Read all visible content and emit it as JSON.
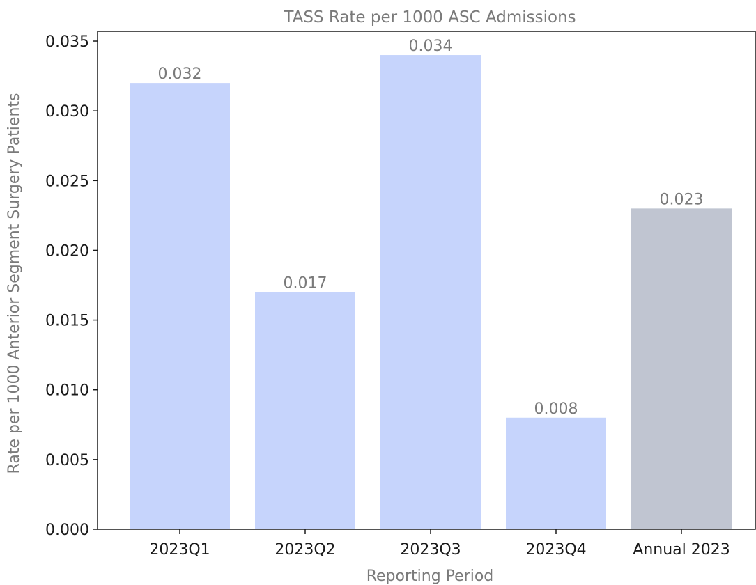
{
  "chart_data": {
    "type": "bar",
    "title": "TASS Rate per 1000 ASC Admissions",
    "xlabel": "Reporting Period",
    "ylabel": "Rate per 1000 Anterior Segment Surgery Patients",
    "categories": [
      "2023Q1",
      "2023Q2",
      "2023Q3",
      "2023Q4",
      "Annual 2023"
    ],
    "values": [
      0.032,
      0.017,
      0.034,
      0.008,
      0.023
    ],
    "data_labels": [
      "0.032",
      "0.017",
      "0.034",
      "0.008",
      "0.023"
    ],
    "bar_colors": [
      "#c6d4fc",
      "#c6d4fc",
      "#c6d4fc",
      "#c6d4fc",
      "#c0c5d1"
    ],
    "ylim": [
      0,
      0.0357
    ],
    "yticks": [
      0.0,
      0.005,
      0.01,
      0.015,
      0.02,
      0.025,
      0.03,
      0.035
    ],
    "ytick_labels": [
      "0.000",
      "0.005",
      "0.010",
      "0.015",
      "0.020",
      "0.025",
      "0.030",
      "0.035"
    ],
    "grid": false,
    "legend": "none"
  }
}
